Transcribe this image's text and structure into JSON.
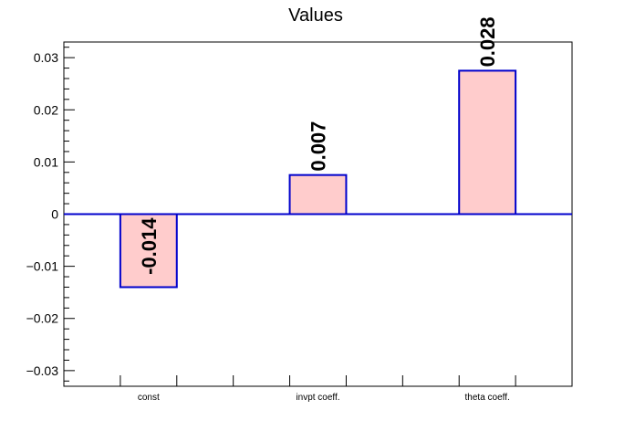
{
  "chart_data": {
    "type": "bar",
    "title": "Values",
    "categories": [
      "const",
      "invpt coeff.",
      "theta coeff."
    ],
    "values": [
      -0.014,
      0.0075,
      0.0275
    ],
    "data_labels": [
      "-0.014",
      "0.007",
      "0.028"
    ],
    "ylim": [
      -0.033,
      0.033
    ],
    "yticks": [
      -0.03,
      -0.02,
      -0.01,
      0,
      0.01,
      0.02,
      0.03
    ],
    "ytick_labels": [
      "−0.03",
      "−0.02",
      "−0.01",
      "0",
      "0.01",
      "0.02",
      "0.03"
    ],
    "xlabel": "",
    "ylabel": "",
    "grid": false,
    "colors": {
      "bar_fill": "#ffcccc",
      "bar_edge": "#0000cc",
      "baseline": "#0000cc"
    }
  }
}
